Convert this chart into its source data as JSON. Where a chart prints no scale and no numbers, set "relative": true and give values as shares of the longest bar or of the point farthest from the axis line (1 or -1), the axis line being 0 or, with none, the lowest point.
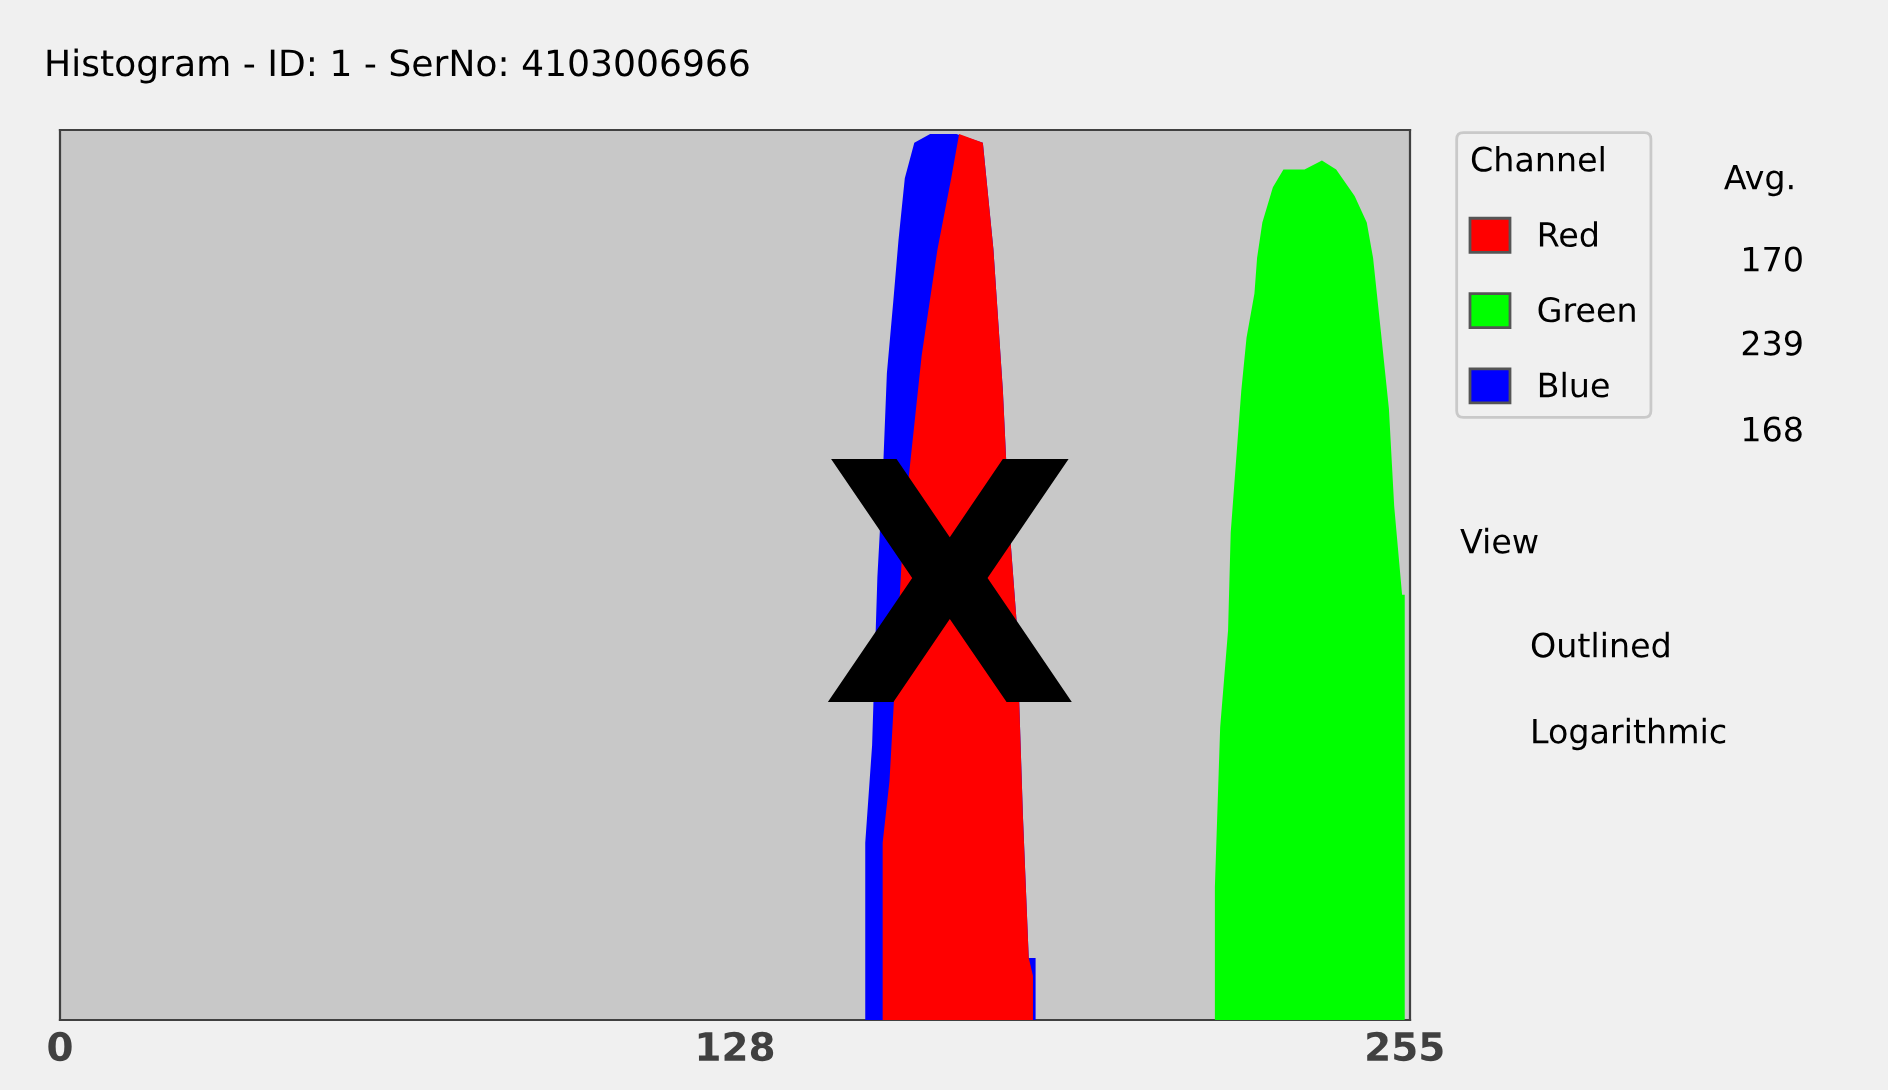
{
  "chart_data": {
    "type": "area",
    "title": "Histogram - ID: 1 - SerNo: 4103006966",
    "relative": true,
    "series": [
      {
        "name": "Red",
        "color": "#ff0000",
        "x": [
          156,
          156,
          157.3,
          160,
          163.4,
          166.4,
          169,
          170.5,
          175,
          177,
          178.8,
          180,
          181.4,
          182.6,
          183.7,
          184.5,
          184.5
        ],
        "values": [
          0,
          0.2,
          0.27,
          0.56,
          0.75,
          0.87,
          0.95,
          1.0,
          0.99,
          0.87,
          0.71,
          0.56,
          0.45,
          0.23,
          0.07,
          0.05,
          0
        ]
      },
      {
        "name": "Green",
        "color": "#00ff00",
        "x": [
          219,
          219,
          220,
          221.5,
          222,
          223,
          224,
          225,
          226.5,
          227,
          228,
          230,
          232,
          236,
          239.3,
          242,
          245.5,
          247.8,
          249,
          250.6,
          252,
          253,
          254.5,
          255,
          255
        ],
        "values": [
          0,
          0.15,
          0.33,
          0.44,
          0.55,
          0.63,
          0.71,
          0.77,
          0.82,
          0.86,
          0.9,
          0.94,
          0.96,
          0.96,
          0.97,
          0.96,
          0.93,
          0.9,
          0.86,
          0.77,
          0.69,
          0.58,
          0.48,
          0.48,
          0
        ]
      },
      {
        "name": "Blue",
        "color": "#0000ff",
        "x": [
          152.7,
          152.7,
          154,
          155,
          156,
          156.8,
          158,
          159,
          160.2,
          162,
          165,
          170,
          175,
          177,
          178.8,
          180,
          181.4,
          182.6,
          183.7,
          185,
          185
        ],
        "values": [
          0,
          0.2,
          0.31,
          0.5,
          0.61,
          0.73,
          0.81,
          0.88,
          0.95,
          0.99,
          1.0,
          1.0,
          0.99,
          0.87,
          0.71,
          0.56,
          0.45,
          0.23,
          0.07,
          0.07,
          0
        ]
      }
    ],
    "xlim": [
      0,
      256
    ],
    "xticks": [
      0,
      128,
      255
    ],
    "grid": false,
    "legend": "right",
    "legend_title": "Channel",
    "annotations": [
      "Avg.",
      "170",
      "239",
      "168",
      "View",
      "Outlined",
      "Logarithmic",
      "X"
    ]
  }
}
